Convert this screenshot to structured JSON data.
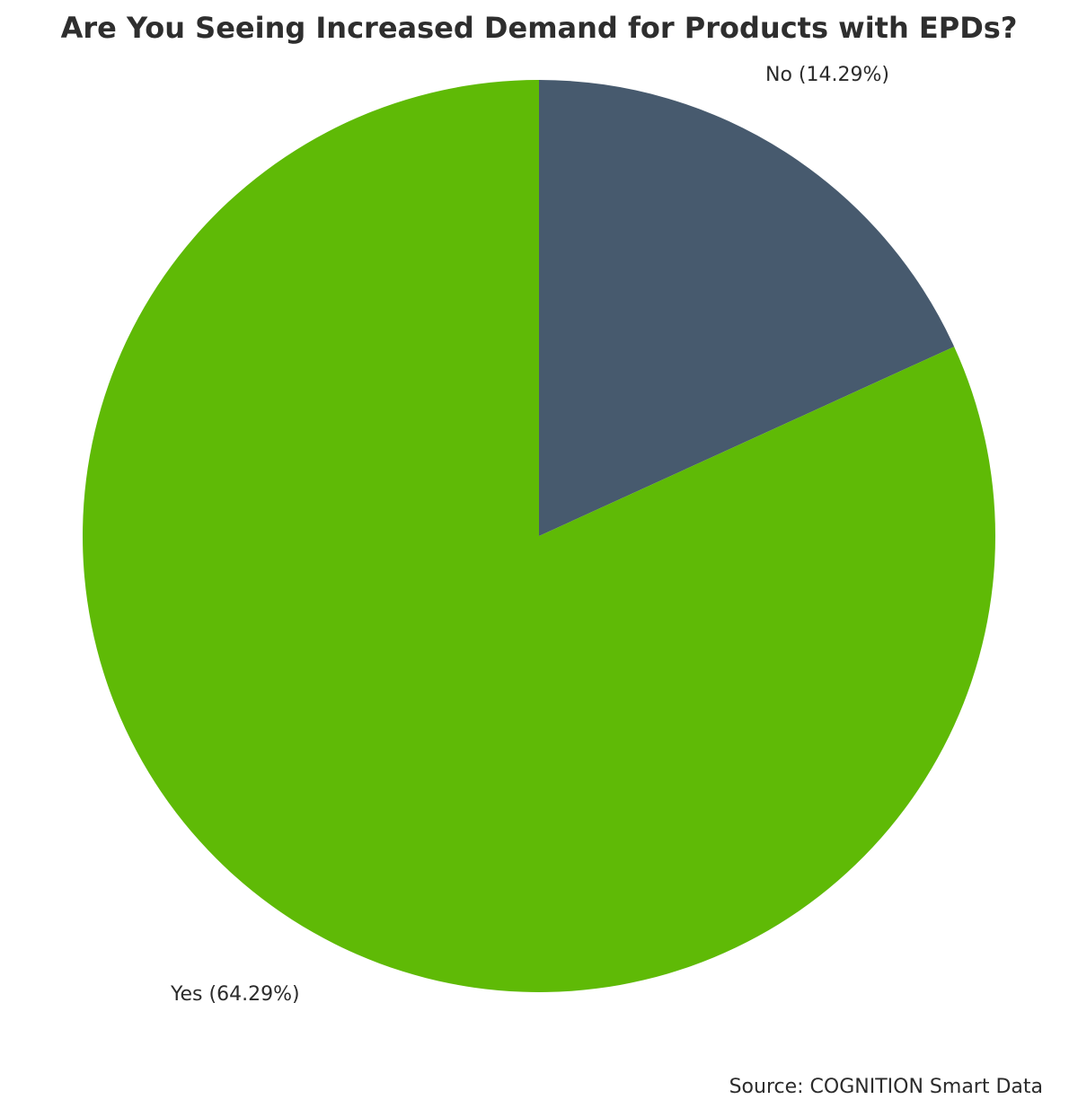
{
  "chart_data": {
    "type": "pie",
    "title": "Are You Seeing Increased Demand for Products with EPDs?",
    "slices": [
      {
        "label": "No (14.29%)",
        "category": "No",
        "value": 14.29,
        "color": "#475a6e"
      },
      {
        "label": "Yes (64.29%)",
        "category": "Yes",
        "value": 64.29,
        "color": "#5fba06"
      }
    ],
    "start_angle": "top",
    "direction": "clockwise",
    "source": "Source: COGNITION Smart Data"
  }
}
